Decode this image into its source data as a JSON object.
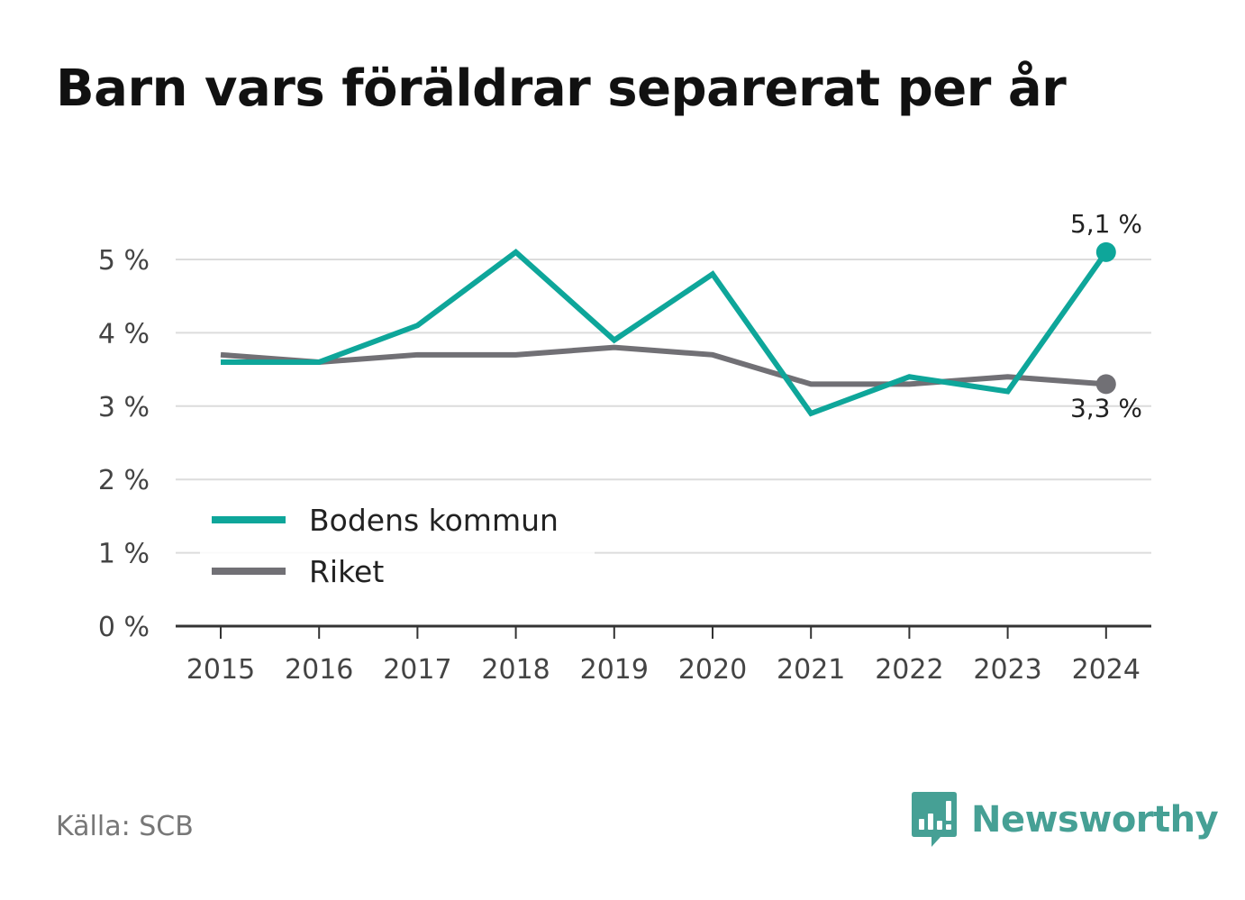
{
  "title": "Barn vars föräldrar separerat per år",
  "source": "Källa: SCB",
  "brand": {
    "name": "Newsworthy",
    "icon": "newsworthy-logo-icon",
    "color": "#46a095"
  },
  "chart_data": {
    "type": "line",
    "title": "Barn vars föräldrar separerat per år",
    "x": [
      "2015",
      "2016",
      "2017",
      "2018",
      "2019",
      "2020",
      "2021",
      "2022",
      "2023",
      "2024"
    ],
    "y_ticks": [
      0,
      1,
      2,
      3,
      4,
      5
    ],
    "y_tick_suffix": " %",
    "ylim": [
      0,
      5.3
    ],
    "grid": true,
    "legend": "bottom-left",
    "series": [
      {
        "name": "Bodens kommun",
        "color": "#0ea69a",
        "values": [
          3.6,
          3.6,
          4.1,
          5.1,
          3.9,
          4.8,
          2.9,
          3.4,
          3.2,
          5.1
        ],
        "end_label": "5,1 %"
      },
      {
        "name": "Riket",
        "color": "#717075",
        "values": [
          3.7,
          3.6,
          3.7,
          3.7,
          3.8,
          3.7,
          3.3,
          3.3,
          3.4,
          3.3
        ],
        "end_label": "3,3 %"
      }
    ]
  }
}
